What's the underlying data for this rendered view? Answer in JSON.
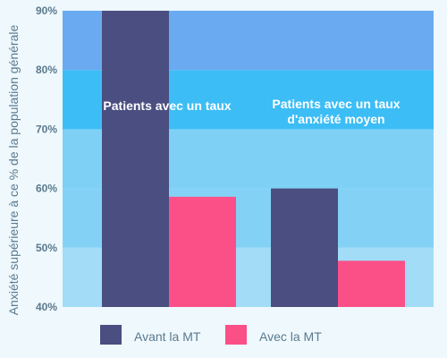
{
  "chart_data": {
    "type": "bar",
    "title": "",
    "xlabel": "",
    "ylabel": "Anxiété supérieure à ce % de la population générale",
    "ylim": [
      40,
      90
    ],
    "yticks": [
      40,
      50,
      60,
      70,
      80,
      90
    ],
    "ytick_labels": [
      "40%",
      "50%",
      "60%",
      "70%",
      "80%",
      "90%"
    ],
    "categories": [
      "Patients avec un taux",
      "Patients avec un taux d'anxiété  moyen"
    ],
    "category_label_lines": [
      [
        "Patients avec un taux"
      ],
      [
        "Patients avec un taux",
        "d'anxiété  moyen"
      ]
    ],
    "series": [
      {
        "name": "Avant la MT",
        "values": [
          90,
          60
        ],
        "color": "#4a4e80"
      },
      {
        "name": "Avec la MT",
        "values": [
          58.6,
          47.8
        ],
        "color": "#fb4f88"
      }
    ],
    "background_bands": [
      {
        "from": 40,
        "to": 50,
        "color": "#a2dcf7"
      },
      {
        "from": 50,
        "to": 60,
        "color": "#83d2f6"
      },
      {
        "from": 60,
        "to": 70,
        "color": "#7fd0f5"
      },
      {
        "from": 70,
        "to": 80,
        "color": "#3cbdf6"
      },
      {
        "from": 80,
        "to": 90,
        "color": "#6aaaf1"
      }
    ],
    "grid": false,
    "legend_position": "bottom"
  }
}
